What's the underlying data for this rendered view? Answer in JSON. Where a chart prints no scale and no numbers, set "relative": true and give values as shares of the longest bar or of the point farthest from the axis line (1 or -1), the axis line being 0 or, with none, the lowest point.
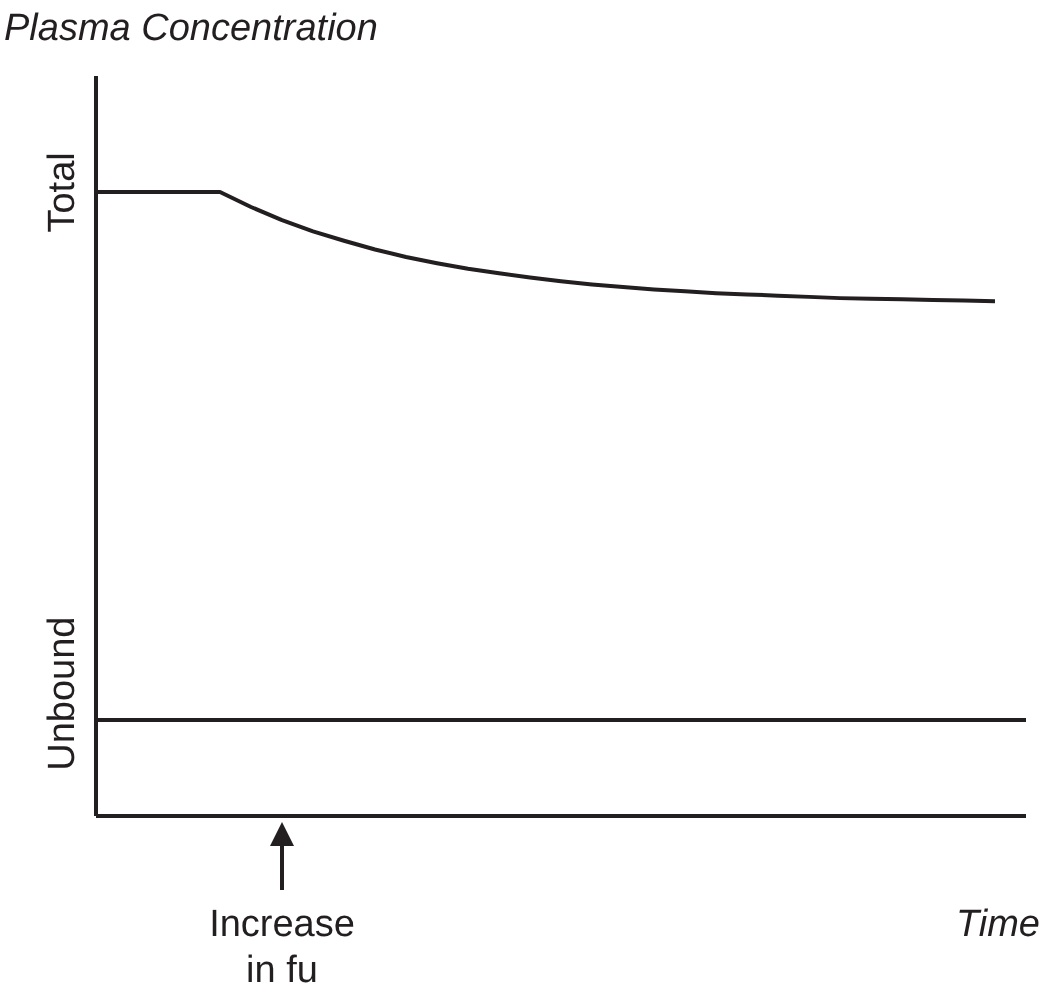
{
  "chart_data": {
    "type": "line",
    "title": "Plasma Concentration",
    "relative": true,
    "annotations": [
      "Increase in fu",
      "Time"
    ],
    "categories": [
      null,
      null,
      null,
      null,
      null,
      null,
      null,
      null,
      null,
      null,
      null,
      null,
      null,
      null,
      null,
      null,
      null,
      null,
      null,
      null,
      null,
      null,
      null,
      null,
      null,
      null,
      null,
      null,
      null,
      null,
      null
    ],
    "series": [
      {
        "name": "Total",
        "color": "#231f20",
        "values": [
          1,
          1,
          1,
          1,
          1,
          0.976,
          0.955,
          0.937,
          0.922,
          0.908,
          0.896,
          0.886,
          0.877,
          0.87,
          0.863,
          0.857,
          0.852,
          0.848,
          0.844,
          0.841,
          0.838,
          0.836,
          0.834,
          0.832,
          0.83,
          0.829,
          0.828,
          0.827,
          0.826,
          0.825,
          null
        ]
      },
      {
        "name": "Unbound",
        "color": "#231f20",
        "values": [
          0.154,
          0.154,
          0.154,
          0.154,
          0.154,
          0.154,
          0.154,
          0.154,
          0.154,
          0.154,
          0.154,
          0.154,
          0.154,
          0.154,
          0.154,
          0.154,
          0.154,
          0.154,
          0.154,
          0.154,
          0.154,
          0.154,
          0.154,
          0.154,
          0.154,
          0.154,
          0.154,
          0.154,
          0.154,
          0.154,
          0.154
        ]
      }
    ],
    "grid": false,
    "legend": false,
    "marker": "none",
    "line_style": "solid"
  }
}
